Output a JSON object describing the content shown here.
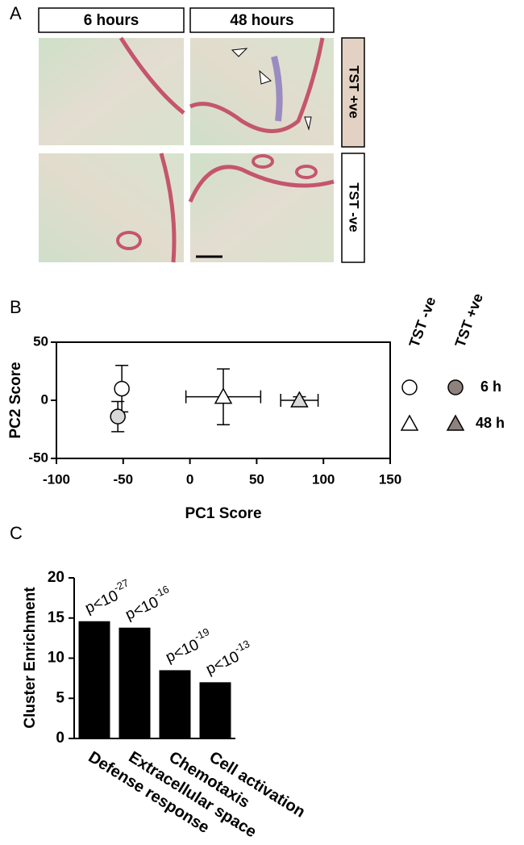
{
  "panel_labels": [
    "A",
    "B",
    "C"
  ],
  "panel_a": {
    "columns": [
      "6 hours",
      "48 hours"
    ],
    "rows": [
      "TST +ve",
      "TST -ve"
    ]
  },
  "chart_data": [
    {
      "type": "scatter",
      "xlabel": "PC1 Score",
      "ylabel": "PC2 Score",
      "xlim": [
        -100,
        150
      ],
      "xticks": [
        -100,
        -50,
        0,
        50,
        100,
        150
      ],
      "ylim": [
        -50,
        50
      ],
      "yticks": [
        -50,
        0,
        50
      ],
      "legend": {
        "columns": [
          "TST -ve",
          "TST +ve"
        ],
        "rows": [
          "6 h",
          "48 h"
        ]
      },
      "series": [
        {
          "marker": "circle",
          "color": "#ffffff",
          "legend_color": "#ffffff",
          "x": [
            -51
          ],
          "values": [
            10
          ],
          "xerr": [
            3
          ],
          "yerr": [
            20
          ]
        },
        {
          "marker": "circle",
          "color": "#d9d9d9",
          "legend_color": "#8e827c",
          "x": [
            -54
          ],
          "values": [
            -14
          ],
          "xerr": [
            3
          ],
          "yerr": [
            13
          ]
        },
        {
          "marker": "triangle",
          "color": "#ffffff",
          "legend_color": "#ffffff",
          "x": [
            25
          ],
          "values": [
            3
          ],
          "xerr": [
            28
          ],
          "yerr": [
            24
          ]
        },
        {
          "marker": "triangle",
          "color": "#d9d9d9",
          "legend_color": "#8e827c",
          "x": [
            82
          ],
          "values": [
            0
          ],
          "xerr": [
            14
          ],
          "yerr": [
            3
          ]
        }
      ]
    },
    {
      "type": "bar",
      "ylabel": "Cluster Enrichment",
      "categories": [
        "Defense response",
        "Extracellular space",
        "Chemotaxis",
        "Cell activation"
      ],
      "values": [
        14.6,
        13.8,
        8.5,
        7.0
      ],
      "color": "#000000",
      "ylim": [
        0,
        20
      ],
      "yticks": [
        0,
        5,
        10,
        15,
        20
      ],
      "annotations": [
        {
          "text": "p<10",
          "exponent": "-27"
        },
        {
          "text": "p<10",
          "exponent": "-16"
        },
        {
          "text": "p<10",
          "exponent": "-19"
        },
        {
          "text": "p<10",
          "exponent": "-13"
        }
      ]
    }
  ]
}
